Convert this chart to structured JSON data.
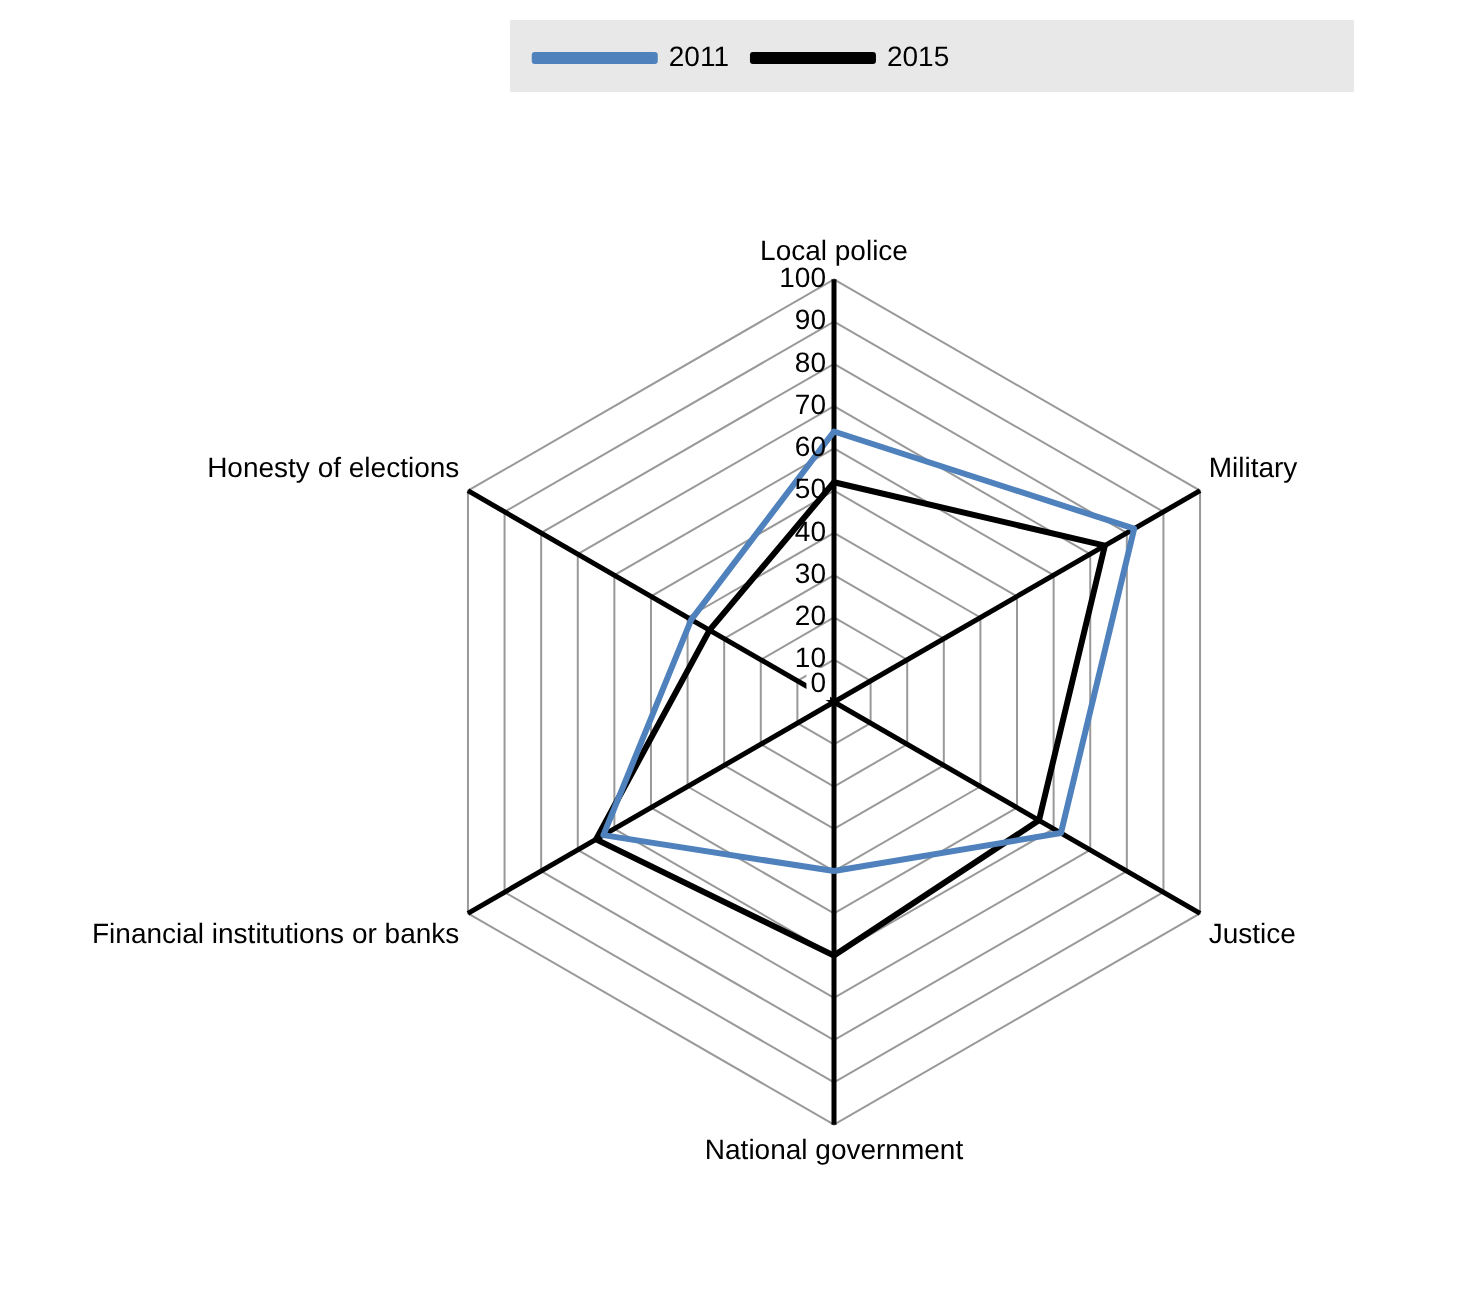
{
  "chart_data": {
    "type": "radar",
    "categories": [
      "Local police",
      "Military",
      "Justice",
      "National government",
      "Financial institutions or banks",
      "Honesty of elections"
    ],
    "series": [
      {
        "name": "2011",
        "color": "#4f81bd",
        "values": [
          64,
          82,
          62,
          40,
          63,
          39
        ]
      },
      {
        "name": "2015",
        "color": "#000000",
        "values": [
          52,
          74,
          56,
          60,
          65,
          34
        ]
      }
    ],
    "ylim": [
      0,
      100
    ],
    "yticks": [
      0,
      10,
      20,
      30,
      40,
      50,
      60,
      70,
      80,
      90,
      100
    ],
    "grid": true,
    "legend": "top",
    "marker": "none"
  }
}
